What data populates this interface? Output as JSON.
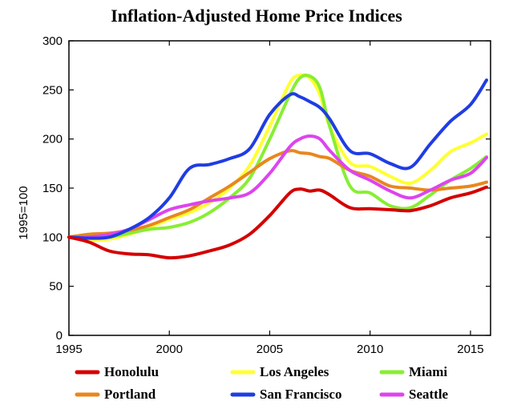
{
  "chart_data": {
    "type": "line",
    "title": "Inflation-Adjusted Home Price Indices",
    "xlabel": "",
    "ylabel": "1995=100",
    "xlim": [
      1995,
      2016
    ],
    "ylim": [
      0,
      300
    ],
    "x_ticks": [
      "1995",
      "2000",
      "2005",
      "2010",
      "2015"
    ],
    "y_ticks": [
      "0",
      "50",
      "100",
      "150",
      "200",
      "250",
      "300"
    ],
    "grid": false,
    "legend_position": "bottom",
    "x": [
      1995,
      1996,
      1997,
      1998,
      1999,
      2000,
      2001,
      2002,
      2003,
      2004,
      2005,
      2006,
      2006.5,
      2007,
      2007.5,
      2008,
      2009,
      2010,
      2011,
      2012,
      2013,
      2014,
      2015,
      2015.8
    ],
    "series": [
      {
        "name": "Honolulu",
        "color": "#d40000",
        "values": [
          100,
          95,
          86,
          83,
          82,
          79,
          81,
          86,
          92,
          103,
          122,
          145,
          149,
          147,
          148,
          143,
          130,
          129,
          128,
          127,
          132,
          140,
          145,
          151
        ]
      },
      {
        "name": "Los Angeles",
        "color": "#ffff33",
        "values": [
          100,
          97,
          98,
          103,
          110,
          118,
          125,
          135,
          150,
          173,
          213,
          257,
          265,
          262,
          245,
          212,
          176,
          172,
          162,
          155,
          168,
          187,
          196,
          205
        ]
      },
      {
        "name": "Miami",
        "color": "#88ee33",
        "values": [
          100,
          100,
          100,
          104,
          108,
          110,
          115,
          125,
          140,
          160,
          200,
          245,
          262,
          264,
          252,
          212,
          152,
          145,
          132,
          130,
          143,
          158,
          170,
          182
        ]
      },
      {
        "name": "Portland",
        "color": "#e8871e",
        "values": [
          100,
          103,
          104,
          107,
          112,
          120,
          128,
          140,
          152,
          166,
          180,
          188,
          186,
          185,
          182,
          180,
          168,
          162,
          152,
          150,
          148,
          150,
          152,
          156
        ]
      },
      {
        "name": "San Francisco",
        "color": "#1f3de3",
        "values": [
          100,
          99,
          100,
          108,
          120,
          140,
          170,
          174,
          180,
          190,
          225,
          245,
          243,
          238,
          232,
          220,
          188,
          185,
          175,
          171,
          195,
          218,
          235,
          260
        ]
      },
      {
        "name": "Seattle",
        "color": "#dd44ee",
        "values": [
          100,
          100,
          103,
          108,
          118,
          128,
          133,
          137,
          140,
          145,
          165,
          192,
          200,
          203,
          200,
          188,
          168,
          158,
          147,
          140,
          148,
          158,
          165,
          181
        ]
      }
    ]
  }
}
